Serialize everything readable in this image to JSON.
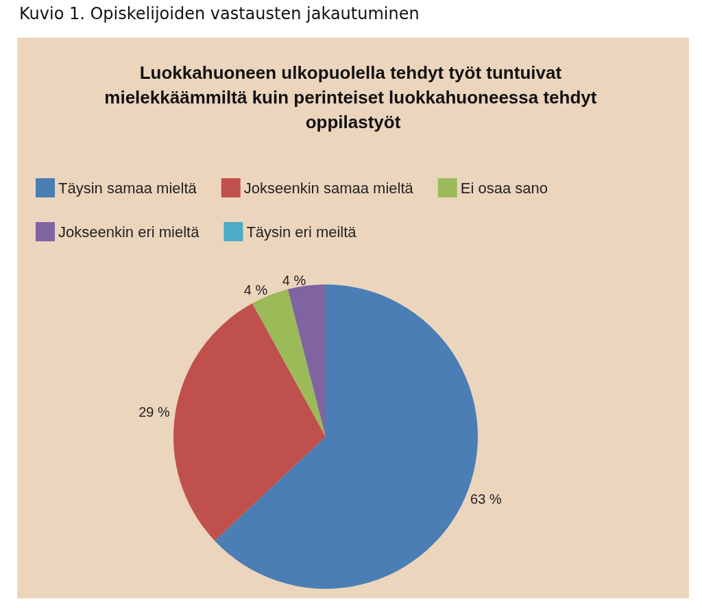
{
  "chart_data": {
    "type": "pie",
    "title": "Luokkahuoneen ulkopuolella tehdyt työt tuntuivat mielekkäämmiltä kuin perinteiset luokkahuoneessa tehdyt oppilastyöt",
    "annotations": [
      "Kuvio 1. Opiskelijoiden vastausten jakautuminen"
    ],
    "categories": [
      "Täysin samaa mieltä",
      "Jokseenkin samaa mieltä",
      "Ei osaa sano",
      "Jokseenkin eri mieltä",
      "Täysin eri meiltä"
    ],
    "values": [
      63,
      29,
      4,
      4,
      0
    ],
    "value_labels": [
      "63 %",
      "29 %",
      "4 %",
      "4 %",
      null
    ],
    "colors": [
      "#4a7eb5",
      "#c0504d",
      "#9bbb59",
      "#8064a2",
      "#4bacc6"
    ],
    "legend": "top"
  }
}
